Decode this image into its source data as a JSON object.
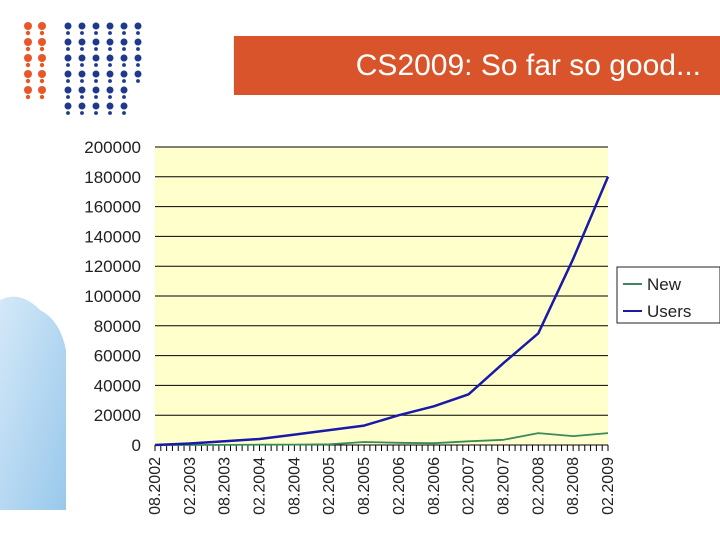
{
  "slide": {
    "title": "CS2009: So far so good..."
  },
  "colors": {
    "title_bg": "#d9542a",
    "plot_bg": "#ffffcc",
    "users_line": "#1a1aa8",
    "new_line": "#3a8a5a",
    "logo_orange": "#e8562a",
    "logo_blue": "#1f3a8a"
  },
  "icons": {
    "logo": "dot-pattern-logo-icon",
    "decoration": "blurred-blue-shape"
  },
  "chart_data": {
    "type": "line",
    "x_tick_labels": [
      "08.2002",
      "02.2003",
      "08.2003",
      "02.2004",
      "08.2004",
      "02.2005",
      "08.2005",
      "02.2006",
      "08.2006",
      "02.2007",
      "08.2007",
      "02.2008",
      "08.2008",
      "02.2009"
    ],
    "y_tick_labels": [
      "0",
      "20000",
      "40000",
      "60000",
      "80000",
      "100000",
      "120000",
      "140000",
      "160000",
      "180000",
      "200000"
    ],
    "ylim": [
      0,
      200000
    ],
    "grid": true,
    "legend_position": "right",
    "legend": [
      "New",
      "Users"
    ],
    "series": [
      {
        "name": "Users",
        "color": "#1a1aa8",
        "x": [
          "08.2002",
          "02.2003",
          "08.2003",
          "02.2004",
          "08.2004",
          "02.2005",
          "08.2005",
          "02.2006",
          "08.2006",
          "02.2007",
          "08.2007",
          "02.2008",
          "08.2008",
          "02.2009"
        ],
        "values": [
          0,
          1000,
          2500,
          4000,
          7000,
          10000,
          13000,
          20000,
          26000,
          34000,
          55000,
          75000,
          125000,
          180000
        ]
      },
      {
        "name": "New",
        "color": "#3a8a5a",
        "x": [
          "08.2002",
          "02.2003",
          "08.2003",
          "02.2004",
          "08.2004",
          "02.2005",
          "08.2005",
          "02.2006",
          "08.2006",
          "02.2007",
          "08.2007",
          "02.2008",
          "08.2008",
          "02.2009"
        ],
        "values": [
          0,
          0,
          100,
          200,
          300,
          500,
          2000,
          1500,
          1200,
          2500,
          3500,
          8000,
          6000,
          8000
        ]
      }
    ]
  }
}
